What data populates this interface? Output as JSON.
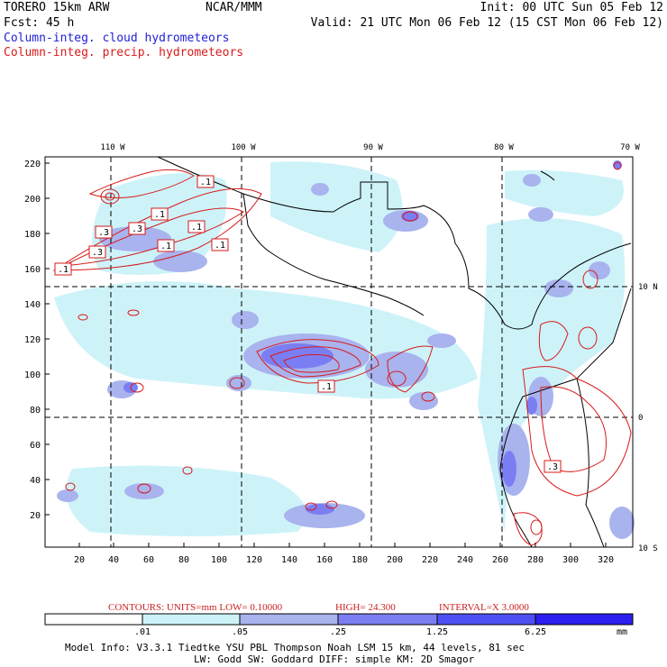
{
  "header": {
    "model": "TORERO  15km ARW",
    "org": "NCAR/MMM",
    "init": "Init: 00 UTC Sun 05 Feb 12",
    "fcst": "Fcst:   45 h",
    "valid": "Valid: 21 UTC Mon 06 Feb 12 (15 CST Mon 06 Feb 12)",
    "legend_cloud": "Column-integ. cloud hydrometeors",
    "legend_precip": "Column-integ. precip. hydrometeors"
  },
  "map": {
    "lon_labels": [
      "110 W",
      "100 W",
      "90 W",
      "80 W",
      "70 W"
    ],
    "lat_labels": [
      "10 N",
      "0",
      "10 S"
    ],
    "x_ticks": [
      "20",
      "40",
      "60",
      "80",
      "100",
      "120",
      "140",
      "160",
      "180",
      "200",
      "220",
      "240",
      "260",
      "280",
      "300",
      "320"
    ],
    "y_ticks": [
      "220",
      "200",
      "180",
      "160",
      "140",
      "120",
      "100",
      "80",
      "60",
      "40",
      "20"
    ],
    "contour_labels": [
      ".1",
      ".1",
      ".3",
      ".3",
      ".3",
      ".1",
      ".1",
      ".1",
      ".1",
      ".1",
      ".3",
      ".1"
    ]
  },
  "contour_info": {
    "units": "CONTOURS:  UNITS=mm  LOW= 0.10000",
    "high": "HIGH=  24.300",
    "interval": "INTERVAL=X  3.0000"
  },
  "colorbar": {
    "labels": [
      ".01",
      ".05",
      ".25",
      "1.25",
      "6.25",
      "mm"
    ],
    "colors": [
      "#ffffff",
      "#cdf3f9",
      "#a9b3ee",
      "#7b7ef2",
      "#4e50f3",
      "#2c1ff0"
    ]
  },
  "footer": {
    "line1": "Model Info: V3.3.1   Tiedtke YSU PBL  Thompson    Noah LSM  15 km,   44 levels,   81 sec",
    "line2": "LW: Godd SW: Goddard DIFF: simple KM: 2D Smagor"
  },
  "colors": {
    "cloud_light": "#cdf3f9",
    "cloud_mid": "#a9b3ee",
    "cloud_dark": "#7b7ef2",
    "precip_contour": "#d81a1a"
  }
}
